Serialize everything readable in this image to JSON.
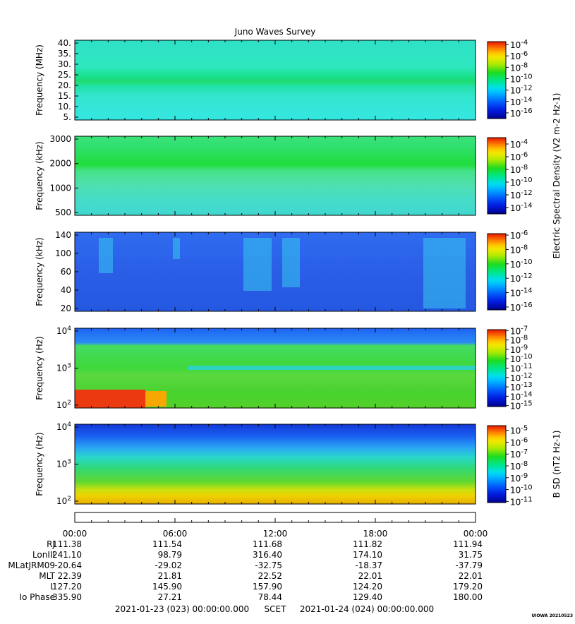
{
  "chart_data": {
    "type": "heatmap",
    "title": "Juno Waves Survey",
    "panels": [
      {
        "ylabel": "Frequency (MHz)",
        "yticks": [
          "40.",
          "35.",
          "30.",
          "25.",
          "20.",
          "15.",
          "10.",
          "5."
        ],
        "ylim": [
          3.5,
          41
        ],
        "colorbar_ticks": [
          -4,
          -6,
          -8,
          -10,
          -12,
          -14,
          -16
        ],
        "cblim": [
          -17,
          -3.5
        ],
        "colorbar_label": ""
      },
      {
        "ylabel": "Frequency (kHz)",
        "yticks": [
          "3000",
          "2000",
          "1000",
          "500"
        ],
        "ylim": [
          140,
          3000
        ],
        "scale": "log",
        "colorbar_ticks": [
          -4,
          -6,
          -8,
          -10,
          -12,
          -14
        ],
        "cblim": [
          -15,
          -3
        ],
        "colorbar_label": "Electric Spectral Density (V2 m-2 Hz-1)"
      },
      {
        "ylabel": "Frequency (kHz)",
        "yticks": [
          "140",
          "100",
          "60",
          "40",
          "20"
        ],
        "ylim": [
          20,
          140
        ],
        "scale": "log",
        "colorbar_ticks": [
          -6,
          -8,
          -10,
          -12,
          -14,
          -16
        ],
        "cblim": [
          -16.4,
          -5.8
        ],
        "colorbar_label": ""
      },
      {
        "ylabel": "Frequency (Hz)",
        "yticks": [
          "10^4",
          "10^3",
          "10^2"
        ],
        "ylim": [
          50,
          22000
        ],
        "scale": "log",
        "colorbar_ticks": [
          -7,
          -8,
          -9,
          -10,
          -11,
          -12,
          -13,
          -14,
          -15
        ],
        "cblim": [
          -15.1,
          -6.9
        ],
        "colorbar_label": ""
      },
      {
        "ylabel": "Frequency (Hz)",
        "yticks": [
          "10^4",
          "10^3",
          "10^2"
        ],
        "ylim": [
          50,
          22000
        ],
        "scale": "log",
        "colorbar_ticks": [
          -5,
          -6,
          -7,
          -8,
          -9,
          -10,
          -11
        ],
        "cblim": [
          -11.1,
          -4.6
        ],
        "colorbar_label": "B SD (nT2 Hz-1)"
      }
    ],
    "time_ticks": [
      "00:00",
      "06:00",
      "12:00",
      "18:00",
      "00:00"
    ],
    "ephemeris": [
      {
        "label": "RJ",
        "values": [
          "111.38",
          "111.54",
          "111.68",
          "111.82",
          "111.94"
        ]
      },
      {
        "label": "LonIII",
        "values": [
          "241.10",
          "98.79",
          "316.40",
          "174.10",
          "31.75"
        ]
      },
      {
        "label": "MLatJRM09",
        "values": [
          "-20.64",
          "-29.02",
          "-32.75",
          "-18.37",
          "-37.79"
        ]
      },
      {
        "label": "MLT",
        "values": [
          "22.39",
          "21.81",
          "22.52",
          "22.01",
          "22.01"
        ]
      },
      {
        "label": "L",
        "values": [
          "127.20",
          "145.90",
          "157.90",
          "124.20",
          "179.20"
        ]
      },
      {
        "label": "Io Phase",
        "values": [
          "335.90",
          "27.21",
          "78.44",
          "129.40",
          "180.00"
        ]
      }
    ],
    "footer": {
      "start": "2021-01-23 (023) 00:00:00.000",
      "center": "SCET",
      "end": "2021-01-24 (024) 00:00:00.000",
      "stamp": "UIOWA 20210523"
    }
  }
}
